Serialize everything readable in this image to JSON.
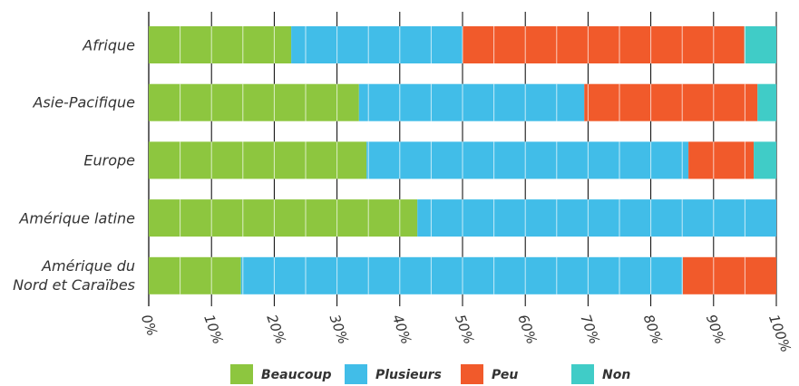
{
  "chart_data": {
    "type": "stacked-bar-horizontal",
    "categories": [
      "Afrique",
      "Asie-Pacifique",
      "Europe",
      "Amérique latine",
      "Amérique du\nNord et Caraïbes"
    ],
    "series": [
      {
        "name": "Beaucoup",
        "color": "#8dc63f",
        "values": [
          22.7,
          33.5,
          34.7,
          42.8,
          14.7
        ]
      },
      {
        "name": "Plusieurs",
        "color": "#41bde8",
        "values": [
          27.3,
          35.9,
          51.3,
          57.2,
          70.4
        ]
      },
      {
        "name": "Peu",
        "color": "#f15a2b",
        "values": [
          44.9,
          27.6,
          10.4,
          0,
          14.9
        ]
      },
      {
        "name": "Non",
        "color": "#40ccc7",
        "values": [
          5.1,
          3.0,
          3.6,
          0,
          0
        ]
      }
    ],
    "xlim": [
      0,
      100
    ],
    "xticks": [
      {
        "value": 0,
        "label": "0%"
      },
      {
        "value": 10,
        "label": "10%"
      },
      {
        "value": 20,
        "label": "20%"
      },
      {
        "value": 30,
        "label": "30%"
      },
      {
        "value": 40,
        "label": "40%"
      },
      {
        "value": 50,
        "label": "50%"
      },
      {
        "value": 60,
        "label": "60%"
      },
      {
        "value": 70,
        "label": "70%"
      },
      {
        "value": 80,
        "label": "80%"
      },
      {
        "value": 90,
        "label": "90%"
      },
      {
        "value": 100,
        "label": "100%"
      }
    ],
    "grid": true
  }
}
